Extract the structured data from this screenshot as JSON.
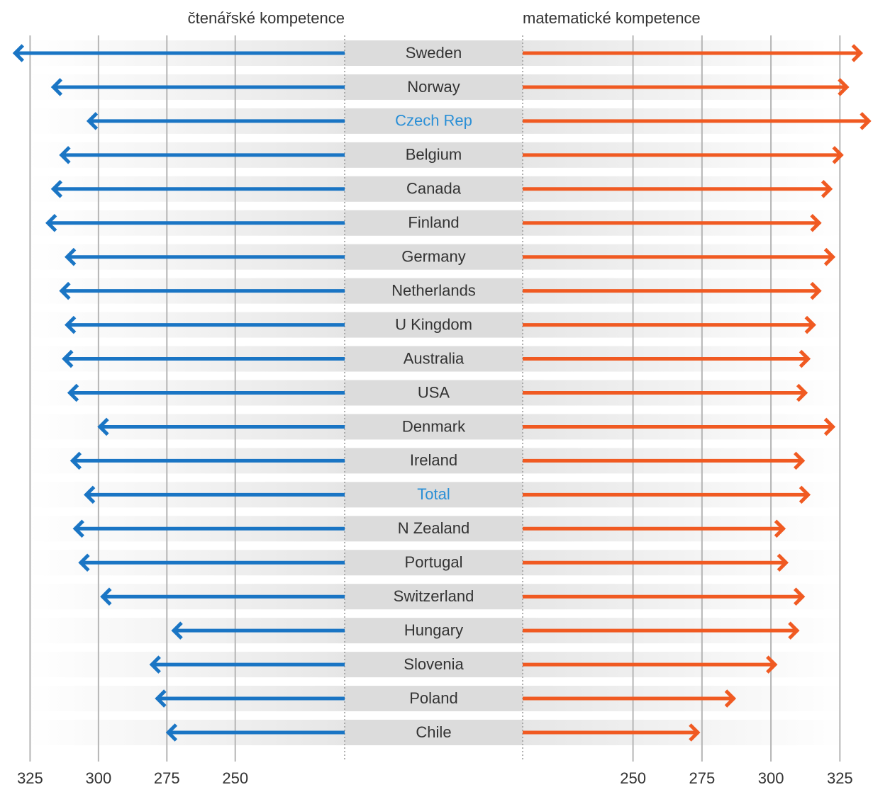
{
  "chart_data": {
    "type": "arrow_butterfly",
    "categories": [
      "Sweden",
      "Norway",
      "Czech Rep",
      "Belgium",
      "Canada",
      "Finland",
      "Germany",
      "Netherlands",
      "U Kingdom",
      "Australia",
      "USA",
      "Denmark",
      "Ireland",
      "Total",
      "N Zealand",
      "Portugal",
      "Switzerland",
      "Hungary",
      "Slovenia",
      "Poland",
      "Chile"
    ],
    "highlighted": [
      false,
      false,
      true,
      false,
      false,
      false,
      false,
      false,
      false,
      false,
      false,
      false,
      false,
      true,
      false,
      false,
      false,
      false,
      false,
      false,
      false
    ],
    "highlight_color": "#2a8fd6",
    "grid": true,
    "series": [
      {
        "name": "čtenářské kompetence",
        "color": "#1a75c4",
        "side": "left",
        "xlim": [
          210,
          336
        ],
        "xticks": [
          325,
          300,
          275,
          250
        ],
        "values": [
          331,
          317,
          304,
          314,
          317,
          319,
          312,
          314,
          312,
          313,
          311,
          300,
          310,
          305,
          309,
          307,
          299,
          273,
          281,
          279,
          275
        ]
      },
      {
        "name": "matematické kompetence",
        "color": "#f05a22",
        "side": "right",
        "xlim": [
          210,
          337
        ],
        "xticks": [
          250,
          275,
          300,
          325
        ],
        "values": [
          333,
          328,
          336,
          326,
          322,
          318,
          323,
          318,
          316,
          314,
          313,
          323,
          312,
          314,
          305,
          306,
          312,
          310,
          302,
          287,
          274
        ]
      }
    ]
  }
}
